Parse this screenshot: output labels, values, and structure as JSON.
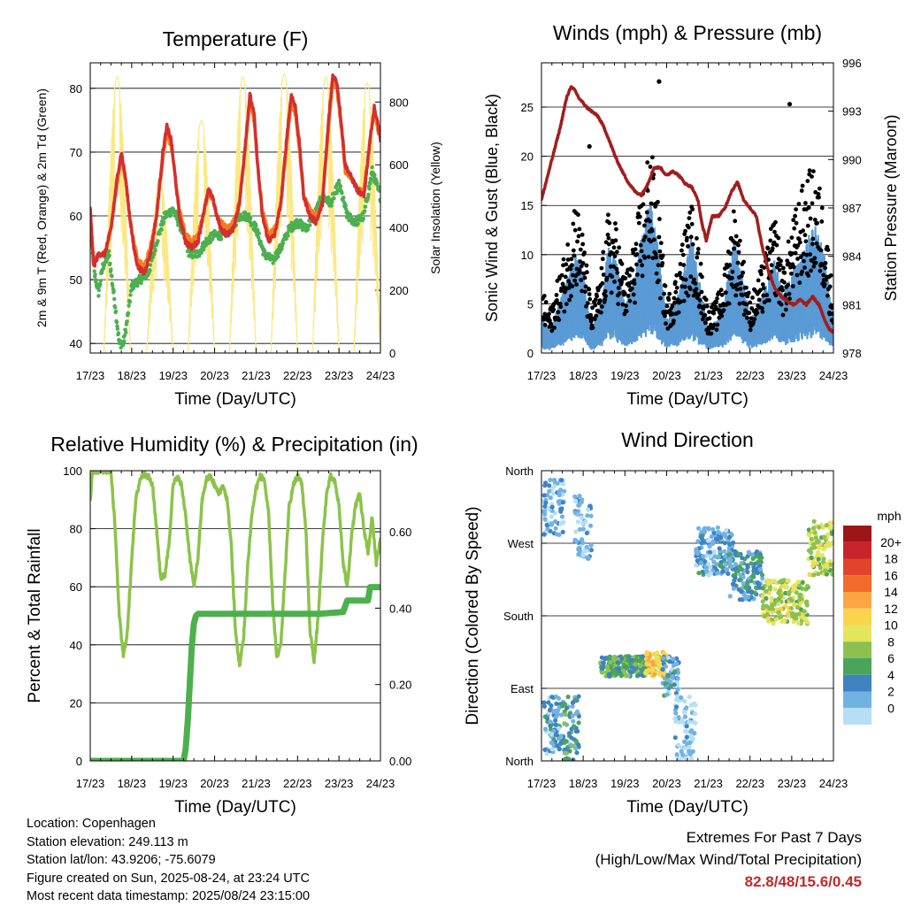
{
  "colors": {
    "temp_2m": "#d32f2f",
    "temp_9m": "#f57c20",
    "dewpoint": "#4caf50",
    "solar": "#fce883",
    "sonic_wind": "#5b9bd5",
    "gust": "#000000",
    "pressure": "#a31d1d",
    "rh": "#8bc34a",
    "precip": "#4cb04c",
    "grid": "#000000",
    "extremes": "#c62828"
  },
  "x_axis": {
    "ticks": [
      "17/23",
      "18/23",
      "19/23",
      "20/23",
      "21/23",
      "22/23",
      "23/23",
      "24/23"
    ],
    "label": "Time (Day/UTC)"
  },
  "chart_data": [
    {
      "type": "line",
      "title": "Temperature (F)",
      "ylabel": "2m & 9m T (Red, Orange) & 2m Td (Green)",
      "ylabel_right": "Solar Insolation (Yellow)",
      "ylim": [
        38.5,
        84
      ],
      "yticks": [
        40,
        50,
        60,
        70,
        80
      ],
      "ylim_right": [
        0,
        925
      ],
      "yticks_right": [
        0,
        200,
        400,
        600,
        800
      ],
      "xlabel": "Time (Day/UTC)",
      "x_days_range": [
        0,
        7
      ],
      "series": [
        {
          "key": "t2m",
          "color_key": "temp_2m",
          "x": [
            0,
            0.08,
            0.2,
            0.35,
            0.5,
            0.65,
            0.75,
            0.85,
            0.95,
            1.05,
            1.15,
            1.3,
            1.45,
            1.6,
            1.75,
            1.85,
            1.95,
            2.05,
            2.15,
            2.3,
            2.45,
            2.6,
            2.75,
            2.85,
            2.95,
            3.05,
            3.15,
            3.3,
            3.45,
            3.6,
            3.75,
            3.85,
            3.95,
            4.05,
            4.15,
            4.3,
            4.45,
            4.6,
            4.75,
            4.85,
            4.95,
            5.05,
            5.15,
            5.3,
            5.45,
            5.6,
            5.75,
            5.85,
            5.95,
            6.05,
            6.15,
            6.3,
            6.45,
            6.6,
            6.75,
            6.85,
            6.95,
            7.0
          ],
          "y": [
            61,
            52,
            54,
            54,
            58,
            66,
            70,
            66,
            60,
            55,
            52,
            51,
            54,
            60,
            70,
            74,
            72,
            66,
            60,
            56,
            55,
            56,
            61,
            64,
            63,
            60,
            58,
            57,
            58,
            62,
            72,
            79,
            76,
            67,
            60,
            56,
            57,
            62,
            73,
            79,
            77,
            71,
            63,
            60,
            59,
            62,
            75,
            82,
            81,
            75,
            68,
            66,
            64,
            63,
            72,
            77,
            74,
            72
          ]
        },
        {
          "key": "t9m",
          "color_key": "temp_9m",
          "x": [
            0,
            0.08,
            0.2,
            0.35,
            0.5,
            0.65,
            0.75,
            0.85,
            0.95,
            1.05,
            1.15,
            1.3,
            1.45,
            1.6,
            1.75,
            1.85,
            1.95,
            2.05,
            2.15,
            2.3,
            2.45,
            2.6,
            2.75,
            2.85,
            2.95,
            3.05,
            3.15,
            3.3,
            3.45,
            3.6,
            3.75,
            3.85,
            3.95,
            4.05,
            4.15,
            4.3,
            4.45,
            4.6,
            4.75,
            4.85,
            4.95,
            5.05,
            5.15,
            5.3,
            5.45,
            5.6,
            5.75,
            5.85,
            5.95,
            6.05,
            6.15,
            6.3,
            6.45,
            6.6,
            6.75,
            6.85,
            6.95,
            7.0
          ],
          "y": [
            61,
            53,
            54,
            54,
            58,
            65,
            69,
            66,
            60,
            56,
            53,
            52,
            55,
            60,
            69,
            73,
            71,
            66,
            61,
            57,
            56,
            57,
            61,
            63,
            63,
            60,
            59,
            58,
            59,
            62,
            71,
            78,
            75,
            67,
            61,
            57,
            58,
            62,
            72,
            78,
            76,
            70,
            63,
            61,
            60,
            62,
            74,
            81,
            80,
            74,
            67,
            66,
            64,
            64,
            72,
            76,
            73,
            72
          ]
        },
        {
          "key": "td2m",
          "color_key": "dewpoint",
          "x": [
            0,
            0.1,
            0.2,
            0.3,
            0.45,
            0.6,
            0.7,
            0.8,
            0.9,
            1.0,
            1.2,
            1.4,
            1.6,
            1.8,
            2.0,
            2.2,
            2.4,
            2.6,
            2.8,
            3.0,
            3.2,
            3.4,
            3.6,
            3.8,
            4.0,
            4.2,
            4.4,
            4.6,
            4.8,
            5.0,
            5.2,
            5.4,
            5.6,
            5.8,
            6.0,
            6.2,
            6.4,
            6.6,
            6.8,
            7.0
          ],
          "y": [
            60,
            51,
            48,
            52,
            54,
            46,
            40,
            40,
            44,
            49,
            50,
            51,
            56,
            60,
            61,
            58,
            54,
            54,
            56,
            57,
            57,
            58,
            60,
            60,
            58,
            54,
            53,
            55,
            58,
            59,
            58,
            60,
            63,
            62,
            65,
            60,
            59,
            60,
            67,
            63
          ]
        },
        {
          "key": "solar",
          "color_key": "solar",
          "axis": "right",
          "diurnal": true,
          "peaks": [
            {
              "day": 0.65,
              "value": 880
            },
            {
              "day": 1.68,
              "value": 560
            },
            {
              "day": 2.68,
              "value": 740
            },
            {
              "day": 3.68,
              "value": 880
            },
            {
              "day": 4.68,
              "value": 890
            },
            {
              "day": 5.68,
              "value": 880
            },
            {
              "day": 6.68,
              "value": 860
            }
          ]
        }
      ]
    },
    {
      "type": "scatter",
      "title": "Winds (mph) & Pressure (mb)",
      "ylabel": "Sonic Wind & Gust (Blue, Black)",
      "ylabel_right": "Station Pressure (Maroon)",
      "ylim": [
        0,
        29.5
      ],
      "yticks": [
        0,
        5,
        10,
        15,
        20,
        25
      ],
      "ylim_right": [
        978,
        996
      ],
      "yticks_right": [
        978,
        981,
        984,
        987,
        990,
        993,
        996
      ],
      "xlabel": "Time (Day/UTC)",
      "x_days_range": [
        0,
        7
      ],
      "wind_envelope": {
        "x": [
          0,
          0.2,
          0.4,
          0.6,
          0.8,
          1.0,
          1.2,
          1.4,
          1.6,
          1.8,
          2.0,
          2.2,
          2.4,
          2.6,
          2.8,
          3.0,
          3.2,
          3.4,
          3.6,
          3.8,
          4.0,
          4.2,
          4.4,
          4.6,
          4.8,
          5.0,
          5.2,
          5.4,
          5.6,
          5.8,
          6.0,
          6.2,
          6.4,
          6.6,
          6.8,
          7.0
        ],
        "y": [
          3,
          2,
          4,
          6,
          9,
          7,
          2,
          4,
          9,
          8,
          4,
          6,
          10,
          13,
          9,
          3,
          4,
          7,
          10,
          6,
          2,
          3,
          5,
          10,
          7,
          3,
          4,
          6,
          8,
          5,
          7,
          8,
          10,
          11,
          8,
          3
        ]
      },
      "gust_envelope": {
        "x": [
          0,
          0.2,
          0.4,
          0.6,
          0.8,
          1.0,
          1.2,
          1.4,
          1.6,
          1.8,
          2.0,
          2.2,
          2.4,
          2.6,
          2.8,
          3.0,
          3.2,
          3.4,
          3.6,
          3.8,
          4.0,
          4.2,
          4.4,
          4.6,
          4.8,
          5.0,
          5.2,
          5.4,
          5.6,
          5.8,
          6.0,
          6.2,
          6.4,
          6.6,
          6.8,
          7.0
        ],
        "y": [
          6,
          4,
          7,
          10,
          15,
          11,
          4,
          7,
          13,
          12,
          7,
          10,
          15,
          20,
          14,
          5,
          7,
          11,
          14,
          9,
          4,
          5,
          8,
          14,
          10,
          5,
          7,
          10,
          13,
          8,
          12,
          15,
          17,
          17,
          13,
          5
        ]
      },
      "pressure_series": {
        "color_key": "pressure",
        "x": [
          0,
          0.15,
          0.3,
          0.45,
          0.6,
          0.7,
          0.8,
          0.9,
          1.0,
          1.1,
          1.2,
          1.35,
          1.5,
          1.65,
          1.8,
          1.95,
          2.1,
          2.25,
          2.4,
          2.55,
          2.7,
          2.85,
          3.0,
          3.15,
          3.3,
          3.45,
          3.6,
          3.75,
          3.85,
          3.95,
          4.1,
          4.25,
          4.4,
          4.55,
          4.7,
          4.85,
          5.0,
          5.15,
          5.3,
          5.45,
          5.6,
          5.75,
          5.9,
          6.05,
          6.2,
          6.35,
          6.5,
          6.65,
          6.8,
          6.9,
          7.0
        ],
        "y": [
          987.5,
          989,
          990.5,
          992,
          993.8,
          994.5,
          994.3,
          993.8,
          993.5,
          993.2,
          993,
          992.7,
          992,
          991,
          990,
          989.2,
          988.5,
          988,
          987.8,
          988.5,
          989.5,
          989.5,
          989,
          989.3,
          989,
          988.5,
          988.3,
          987.5,
          986,
          985,
          986.5,
          986.5,
          987,
          988,
          988.6,
          987.5,
          987,
          986.5,
          984.5,
          983,
          982,
          981.5,
          981.2,
          981,
          981.3,
          981,
          981.5,
          981,
          980,
          979.5,
          979.3
        ]
      },
      "gust_outliers": [
        {
          "x": 1.15,
          "y": 21
        },
        {
          "x": 2.82,
          "y": 27.6
        },
        {
          "x": 5.95,
          "y": 25.3
        }
      ]
    },
    {
      "type": "line",
      "title": "Relative Humidity (%) & Precipitation (in)",
      "ylabel": "Percent & Total Rainfall",
      "ylim": [
        0,
        100
      ],
      "yticks": [
        0,
        20,
        40,
        60,
        80,
        100
      ],
      "ylim_right": [
        0,
        0.76
      ],
      "yticks_right": [
        "0.00",
        "0.20",
        "0.40",
        "0.60"
      ],
      "yticks_right_values": [
        0,
        0.2,
        0.4,
        0.6
      ],
      "xlabel": "Time (Day/UTC)",
      "x_days_range": [
        0,
        7
      ],
      "series": [
        {
          "key": "rh",
          "color_key": "rh",
          "x": [
            0,
            0.05,
            0.15,
            0.3,
            0.5,
            0.6,
            0.7,
            0.8,
            0.9,
            1.0,
            1.1,
            1.2,
            1.3,
            1.4,
            1.5,
            1.6,
            1.7,
            1.8,
            1.9,
            2.0,
            2.1,
            2.2,
            2.3,
            2.4,
            2.5,
            2.6,
            2.7,
            2.8,
            2.9,
            3.0,
            3.1,
            3.2,
            3.3,
            3.4,
            3.5,
            3.6,
            3.7,
            3.8,
            3.9,
            4.0,
            4.1,
            4.2,
            4.3,
            4.4,
            4.5,
            4.6,
            4.7,
            4.8,
            4.9,
            5.0,
            5.1,
            5.2,
            5.3,
            5.4,
            5.5,
            5.6,
            5.7,
            5.8,
            5.9,
            6.0,
            6.1,
            6.2,
            6.3,
            6.4,
            6.5,
            6.6,
            6.7,
            6.8,
            6.9,
            7.0
          ],
          "y": [
            89,
            100,
            100,
            100,
            100,
            80,
            50,
            36,
            45,
            70,
            90,
            97,
            99,
            98,
            95,
            80,
            63,
            64,
            75,
            95,
            98,
            95,
            85,
            70,
            60,
            70,
            90,
            97,
            98,
            95,
            92,
            95,
            90,
            75,
            45,
            33,
            42,
            68,
            85,
            94,
            98,
            97,
            85,
            55,
            35,
            40,
            65,
            88,
            95,
            98,
            96,
            80,
            45,
            34,
            50,
            75,
            92,
            98,
            96,
            88,
            68,
            60,
            77,
            88,
            92,
            80,
            72,
            84,
            68,
            76
          ]
        },
        {
          "key": "precip",
          "color_key": "precip",
          "axis": "right",
          "x": [
            0,
            2.25,
            2.3,
            2.35,
            2.4,
            2.45,
            2.5,
            2.55,
            2.6,
            2.7,
            4.5,
            5.5,
            6.1,
            6.2,
            6.5,
            6.7,
            6.75,
            7.0
          ],
          "y": [
            0,
            0,
            0.03,
            0.1,
            0.2,
            0.3,
            0.36,
            0.38,
            0.385,
            0.385,
            0.385,
            0.385,
            0.39,
            0.42,
            0.42,
            0.42,
            0.455,
            0.455
          ]
        }
      ]
    },
    {
      "type": "scatter",
      "title": "Wind Direction",
      "ylabel": "Direction (Colored By Speed)",
      "yticks": [
        "North",
        "East",
        "South",
        "West",
        "North"
      ],
      "ylim": [
        0,
        360
      ],
      "xlabel": "Time (Day/UTC)",
      "x_days_range": [
        0,
        7
      ],
      "colorbar": {
        "unit": "mph",
        "labels": [
          "20+",
          "18",
          "16",
          "14",
          "12",
          "10",
          "8",
          "6",
          "4",
          "2",
          "0"
        ],
        "colors": [
          "#9e1518",
          "#c9242b",
          "#e1432b",
          "#f36b2c",
          "#fba545",
          "#fbd44d",
          "#e3e55c",
          "#8cc152",
          "#4aa55b",
          "#3f83c1",
          "#72b2e3",
          "#b6dff5"
        ]
      },
      "clusters": [
        {
          "x": [
            0.05,
            0.55
          ],
          "dir": [
            280,
            350
          ],
          "speed": 2
        },
        {
          "x": [
            0.05,
            0.55
          ],
          "dir": [
            5,
            80
          ],
          "speed": 3
        },
        {
          "x": [
            0.55,
            0.9
          ],
          "dir": [
            0,
            80
          ],
          "speed": 5
        },
        {
          "x": [
            0.8,
            1.2
          ],
          "dir": [
            250,
            330
          ],
          "speed": 2
        },
        {
          "x": [
            1.4,
            2.6
          ],
          "dir": [
            105,
            130
          ],
          "speed": 6
        },
        {
          "x": [
            2.5,
            3.0
          ],
          "dir": [
            105,
            135
          ],
          "speed": 12
        },
        {
          "x": [
            2.9,
            3.3
          ],
          "dir": [
            80,
            130
          ],
          "speed": 3
        },
        {
          "x": [
            3.2,
            3.7
          ],
          "dir": [
            0,
            80
          ],
          "speed": 1
        },
        {
          "x": [
            3.7,
            4.6
          ],
          "dir": [
            230,
            290
          ],
          "speed": 3
        },
        {
          "x": [
            4.5,
            5.3
          ],
          "dir": [
            200,
            260
          ],
          "speed": 4
        },
        {
          "x": [
            5.3,
            6.4
          ],
          "dir": [
            170,
            225
          ],
          "speed": 9
        },
        {
          "x": [
            6.4,
            7.0
          ],
          "dir": [
            230,
            300
          ],
          "speed": 9
        }
      ]
    }
  ],
  "info": {
    "location": "Location: Copenhagen",
    "elevation": "Station elevation: 249.113 m",
    "latlon": "Station lat/lon: 43.9206; -75.6079",
    "created": "Figure created on Sun, 2025-08-24, at 23:24 UTC",
    "recent": "Most recent data timestamp: 2025/08/24 23:15:00"
  },
  "extremes": {
    "title": "Extremes For Past 7 Days",
    "subtitle": "(High/Low/Max Wind/Total Precipitation)",
    "values": "82.8/48/15.6/0.45"
  }
}
